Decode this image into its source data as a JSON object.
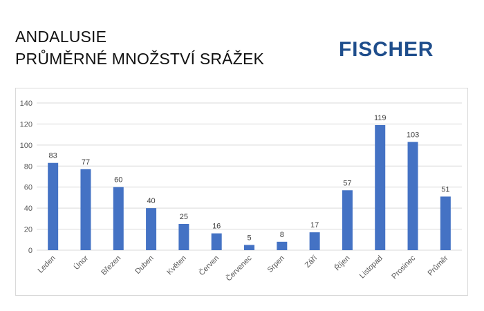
{
  "header": {
    "title_line1": "ANDALUSIE",
    "title_line2": "PRŮMĚRNÉ MNOŽSTVÍ SRÁŽEK",
    "logo_text": "FISCHER"
  },
  "colors": {
    "bar": "#4472c4",
    "logo": "#1f4e8c",
    "grid": "#d9d9d9",
    "axis_text": "#595959",
    "label_text": "#404040"
  },
  "chart_data": {
    "type": "bar",
    "title": "",
    "xlabel": "",
    "ylabel": "",
    "categories": [
      "Leden",
      "Únor",
      "Březen",
      "Duben",
      "Květen",
      "Červen",
      "Červenec",
      "Srpen",
      "Září",
      "Říjen",
      "Listopad",
      "Prosinec",
      "Průměr"
    ],
    "values": [
      83,
      77,
      60,
      40,
      25,
      16,
      5,
      8,
      17,
      57,
      119,
      103,
      51
    ],
    "ylim": [
      0,
      140
    ],
    "yticks": [
      0,
      20,
      40,
      60,
      80,
      100,
      120,
      140
    ],
    "grid": true,
    "legend": "none",
    "data_labels": true
  }
}
